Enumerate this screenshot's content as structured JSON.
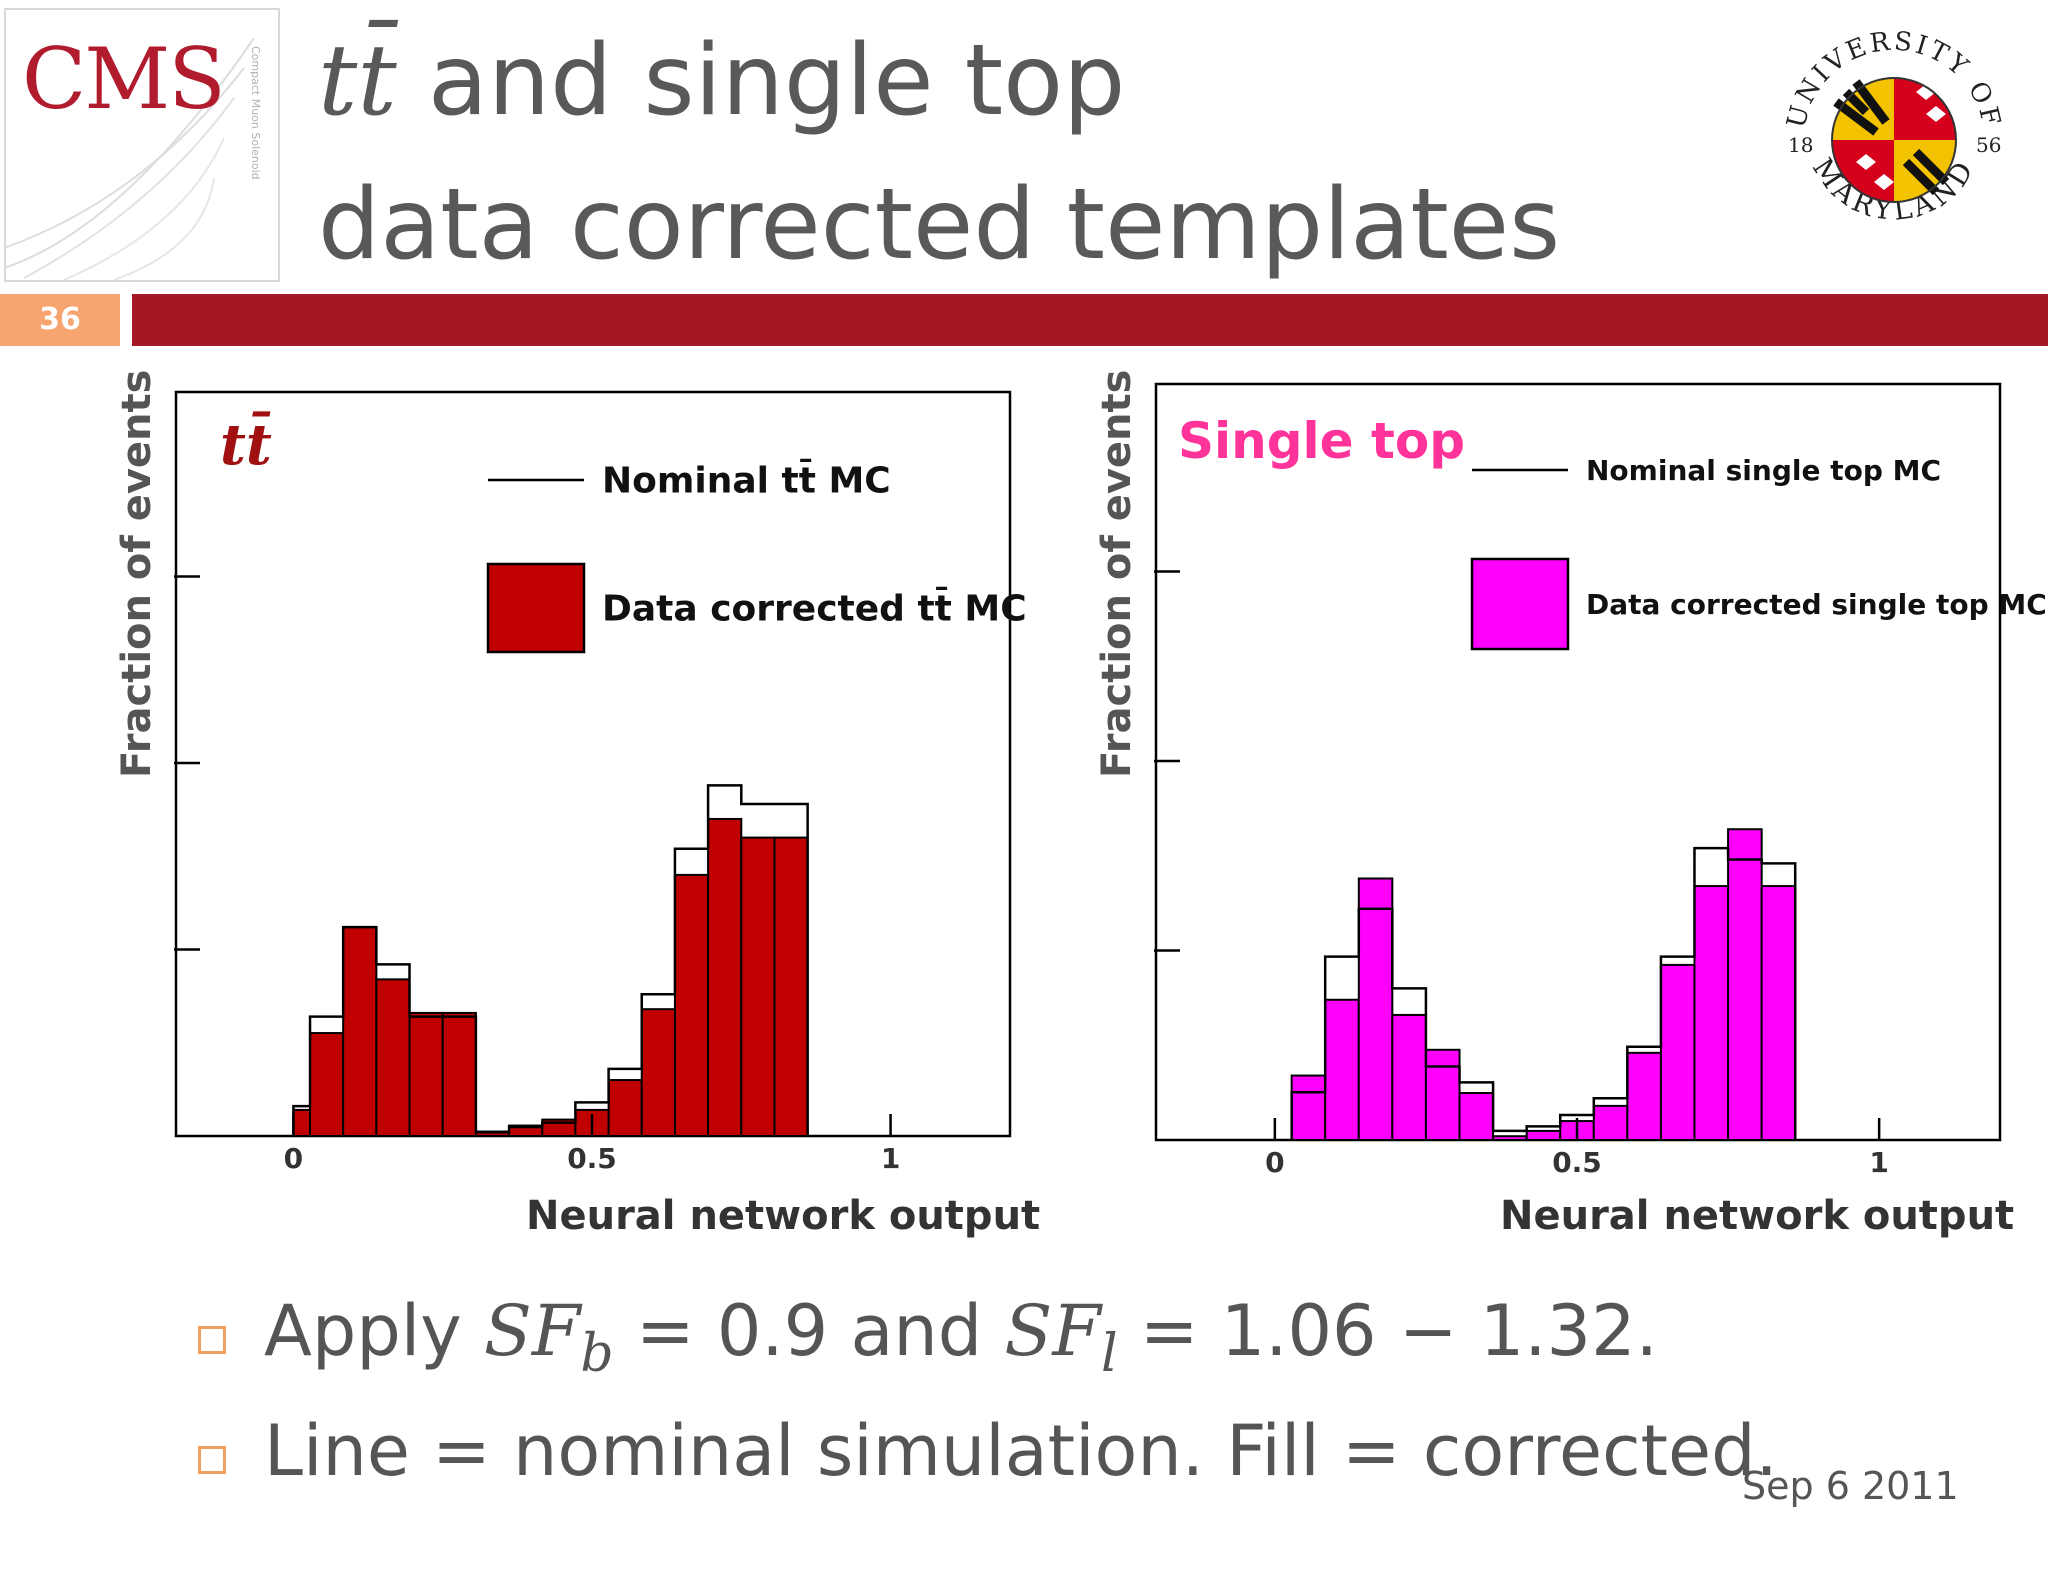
{
  "header": {
    "logo_text": "CMS",
    "logo_sub": "Compact Muon Solenoid",
    "title_math": "tt̄",
    "title_line1_rest": " and single top",
    "title_line2": "data corrected templates",
    "seal_top": "UNIVERSITY OF",
    "seal_bottom": "MARYLAND",
    "seal_year_left": "18",
    "seal_year_right": "56",
    "slide_number": "36",
    "colors": {
      "accent_bar": "#a51722",
      "number_box": "#f7a470"
    }
  },
  "bullets": {
    "b1_a": "Apply ",
    "b1_sf1": "SF",
    "b1_sub1": "b",
    "b1_b": " = 0.9 and ",
    "b1_sf2": "SF",
    "b1_sub2": "l",
    "b1_c": " = 1.06 − 1.32.",
    "b2": "Line = nominal simulation.  Fill = corrected."
  },
  "footer": {
    "date": "Sep 6 2011"
  },
  "chart_data": [
    {
      "type": "bar",
      "histogram": true,
      "label": "tt̄",
      "xlabel": "Neural network output",
      "ylabel": "Fraction of events",
      "xlim": [
        -0.2,
        1.2
      ],
      "ylim": [
        0,
        1.0
      ],
      "xticks": [
        0,
        0.5,
        1
      ],
      "xtick_labels": [
        "0",
        "0.5",
        "1"
      ],
      "yticks": [
        0.25,
        0.5,
        0.75
      ],
      "bin_edges": [
        0.0,
        0.0278,
        0.0833,
        0.1389,
        0.1944,
        0.25,
        0.3056,
        0.3611,
        0.4167,
        0.4722,
        0.5278,
        0.5833,
        0.6389,
        0.6944,
        0.75,
        0.8056,
        0.8611
      ],
      "series": [
        {
          "name": "Nominal tt̄ MC",
          "style": "line",
          "color": "#000000",
          "values": [
            0.04,
            0.16,
            0.28,
            0.23,
            0.16,
            0.16,
            0.005,
            0.012,
            0.018,
            0.045,
            0.09,
            0.19,
            0.385,
            0.47,
            0.445,
            0.445
          ]
        },
        {
          "name": "Data corrected tt̄ MC",
          "style": "fill",
          "color": "#c00000",
          "values": [
            0.035,
            0.138,
            0.28,
            0.21,
            0.165,
            0.165,
            0.006,
            0.014,
            0.022,
            0.035,
            0.075,
            0.17,
            0.35,
            0.425,
            0.4,
            0.4
          ]
        }
      ],
      "legend": "top-right"
    },
    {
      "type": "bar",
      "histogram": true,
      "label": "Single top",
      "xlabel": "Neural network output",
      "ylabel": "Fraction of events",
      "xlim": [
        -0.2,
        1.2
      ],
      "ylim": [
        0,
        1.0
      ],
      "xticks": [
        0,
        0.5,
        1
      ],
      "xtick_labels": [
        "0",
        "0.5",
        "1"
      ],
      "yticks": [
        0.25,
        0.5,
        0.75
      ],
      "bin_edges": [
        0.0278,
        0.0833,
        0.1389,
        0.1944,
        0.25,
        0.3056,
        0.3611,
        0.4167,
        0.4722,
        0.5278,
        0.5833,
        0.6389,
        0.6944,
        0.75,
        0.8056,
        0.8611
      ],
      "series": [
        {
          "name": "Nominal single top MC",
          "style": "line",
          "color": "#000000",
          "values": [
            0.063,
            0.242,
            0.305,
            0.2,
            0.097,
            0.076,
            0.012,
            0.018,
            0.033,
            0.055,
            0.123,
            0.242,
            0.385,
            0.37,
            0.365
          ]
        },
        {
          "name": "Data corrected single top MC",
          "style": "fill",
          "color": "#ff00ff",
          "values": [
            0.085,
            0.185,
            0.345,
            0.165,
            0.119,
            0.062,
            0.005,
            0.012,
            0.025,
            0.045,
            0.115,
            0.231,
            0.335,
            0.41,
            0.335
          ]
        }
      ],
      "legend": "top-right"
    }
  ]
}
